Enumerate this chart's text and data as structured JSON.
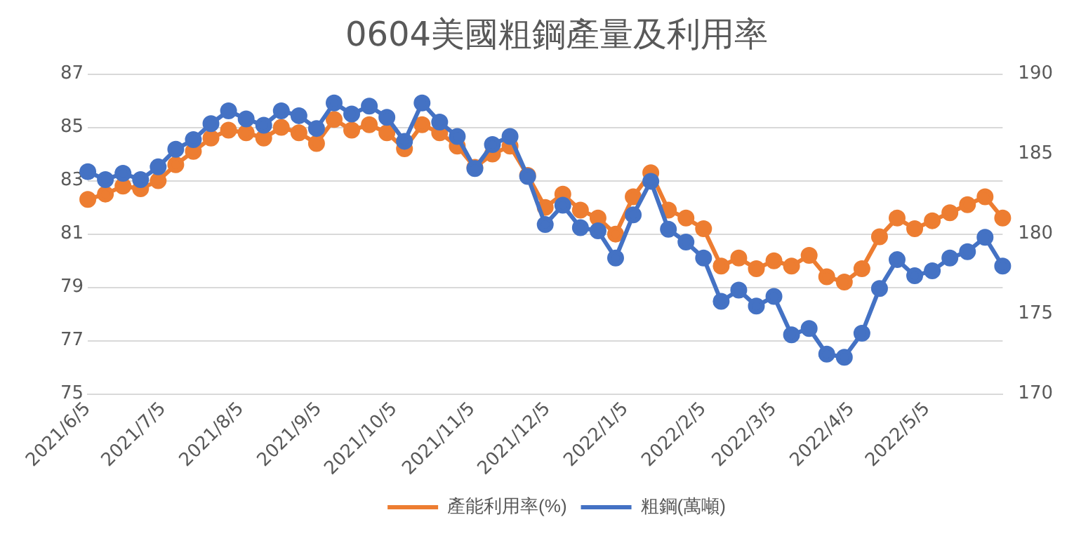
{
  "chart_data": {
    "type": "line",
    "title": "0604美國粗鋼產量及利用率",
    "x": [
      "2021-06-05",
      "2021-06-12",
      "2021-06-19",
      "2021-06-26",
      "2021-07-03",
      "2021-07-10",
      "2021-07-17",
      "2021-07-24",
      "2021-07-31",
      "2021-08-07",
      "2021-08-14",
      "2021-08-21",
      "2021-08-28",
      "2021-09-04",
      "2021-09-11",
      "2021-09-18",
      "2021-09-25",
      "2021-10-02",
      "2021-10-09",
      "2021-10-16",
      "2021-10-23",
      "2021-10-30",
      "2021-11-06",
      "2021-11-13",
      "2021-11-20",
      "2021-11-27",
      "2021-12-04",
      "2021-12-11",
      "2021-12-18",
      "2021-12-25",
      "2022-01-01",
      "2022-01-08",
      "2022-01-15",
      "2022-01-22",
      "2022-01-29",
      "2022-02-05",
      "2022-02-12",
      "2022-02-19",
      "2022-02-26",
      "2022-03-05",
      "2022-03-12",
      "2022-03-19",
      "2022-03-26",
      "2022-04-02",
      "2022-04-09",
      "2022-04-16",
      "2022-04-23",
      "2022-04-30",
      "2022-05-07",
      "2022-05-14",
      "2022-05-21",
      "2022-05-28",
      "2022-06-04"
    ],
    "series": [
      {
        "name": "產能利用率(%)",
        "color": "#ed7d31",
        "values": [
          82.3,
          82.5,
          82.8,
          82.7,
          83.0,
          83.6,
          84.1,
          84.6,
          84.9,
          84.8,
          84.6,
          85.0,
          84.8,
          84.4,
          85.3,
          84.9,
          85.1,
          84.8,
          84.2,
          85.1,
          84.8,
          84.3,
          83.5,
          84.0,
          84.3,
          83.2,
          82.0,
          82.5,
          81.9,
          81.6,
          81.0,
          82.4,
          83.3,
          81.9,
          81.6,
          81.2,
          79.8,
          80.1,
          79.7,
          80.0,
          79.8,
          80.2,
          79.4,
          79.2,
          79.7,
          80.9,
          81.6,
          81.2,
          81.5,
          81.8,
          82.1,
          82.4,
          81.6
        ]
      },
      {
        "name": "粗鋼(萬噸)",
        "color": "#4472c4",
        "axis": "y2",
        "values": [
          183.9,
          183.4,
          183.8,
          183.4,
          184.2,
          185.3,
          185.9,
          186.9,
          187.7,
          187.2,
          186.8,
          187.7,
          187.4,
          186.6,
          188.2,
          187.5,
          188.0,
          187.3,
          185.8,
          188.2,
          187.0,
          186.1,
          184.1,
          185.6,
          186.1,
          183.6,
          180.6,
          181.8,
          180.4,
          180.2,
          178.5,
          181.2,
          183.3,
          180.3,
          179.5,
          178.5,
          175.8,
          176.5,
          175.5,
          176.1,
          173.7,
          174.1,
          172.5,
          172.3,
          173.8,
          176.6,
          178.4,
          177.4,
          177.7,
          178.5,
          178.9,
          179.8,
          178.0
        ]
      }
    ],
    "xlim": [
      "2021-06-05",
      "2022-06-04"
    ],
    "xticks": [
      {
        "value": "2021-06-05",
        "label": "2021/6/5"
      },
      {
        "value": "2021-07-05",
        "label": "2021/7/5"
      },
      {
        "value": "2021-08-05",
        "label": "2021/8/5"
      },
      {
        "value": "2021-09-05",
        "label": "2021/9/5"
      },
      {
        "value": "2021-10-05",
        "label": "2021/10/5"
      },
      {
        "value": "2021-11-05",
        "label": "2021/11/5"
      },
      {
        "value": "2021-12-05",
        "label": "2021/12/5"
      },
      {
        "value": "2022-01-05",
        "label": "2022/1/5"
      },
      {
        "value": "2022-02-05",
        "label": "2022/2/5"
      },
      {
        "value": "2022-03-05",
        "label": "2022/3/5"
      },
      {
        "value": "2022-04-05",
        "label": "2022/4/5"
      },
      {
        "value": "2022-05-05",
        "label": "2022/5/5"
      }
    ],
    "ylim": [
      75,
      87
    ],
    "yticks": [
      75,
      77,
      79,
      81,
      83,
      85,
      87
    ],
    "y2lim": [
      170,
      190
    ],
    "y2ticks": [
      170,
      175,
      180,
      185,
      190
    ],
    "grid": "y",
    "legend": "bottom",
    "marker": "circle",
    "line_style": "solid"
  }
}
